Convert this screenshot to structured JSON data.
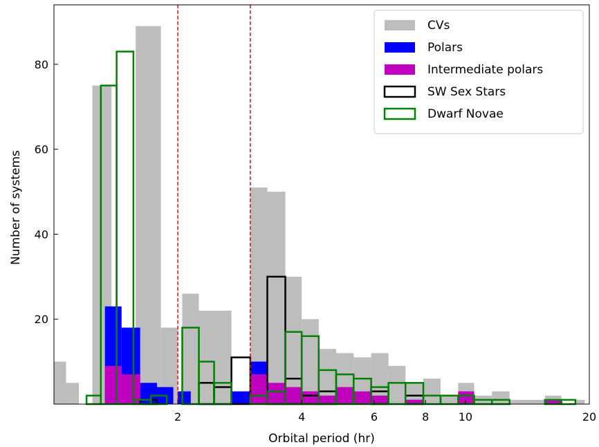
{
  "chart_data": {
    "type": "bar",
    "x_scale": "log",
    "xlim": [
      1,
      20
    ],
    "ylim": [
      0,
      94
    ],
    "xlabel": "Orbital period (hr)",
    "ylabel": "Number of systems",
    "x_ticks": [
      {
        "value": 2,
        "label": "2"
      },
      {
        "value": 4,
        "label": "4"
      },
      {
        "value": 6,
        "label": "6"
      },
      {
        "value": 8,
        "label": "8"
      },
      {
        "value": 10,
        "label": "10"
      },
      {
        "value": 20,
        "label": "20"
      }
    ],
    "y_ticks": [
      {
        "value": 20,
        "label": "20"
      },
      {
        "value": 40,
        "label": "40"
      },
      {
        "value": 60,
        "label": "60"
      },
      {
        "value": 80,
        "label": "80"
      }
    ],
    "reference_lines": [
      {
        "x": 2.0,
        "color": "#ff0000",
        "style": "dashed"
      },
      {
        "x": 3.0,
        "color": "#ff0000",
        "style": "dashed"
      }
    ],
    "legend_position": "top-right",
    "grid": false,
    "series": [
      {
        "name": "CVs",
        "style": "filled",
        "color": "#bdbdbd",
        "bins": [
          {
            "x0": 1.0,
            "x1": 1.07,
            "count": 10
          },
          {
            "x0": 1.07,
            "x1": 1.15,
            "count": 5
          },
          {
            "x0": 1.24,
            "x1": 1.38,
            "count": 75
          },
          {
            "x0": 1.58,
            "x1": 1.82,
            "count": 89
          },
          {
            "x0": 1.82,
            "x1": 2.0,
            "count": 18
          },
          {
            "x0": 2.05,
            "x1": 2.25,
            "count": 26
          },
          {
            "x0": 2.25,
            "x1": 2.45,
            "count": 22
          },
          {
            "x0": 2.45,
            "x1": 2.7,
            "count": 22
          },
          {
            "x0": 3.0,
            "x1": 3.3,
            "count": 51
          },
          {
            "x0": 3.3,
            "x1": 3.65,
            "count": 50
          },
          {
            "x0": 3.65,
            "x1": 4.0,
            "count": 30
          },
          {
            "x0": 4.0,
            "x1": 4.4,
            "count": 20
          },
          {
            "x0": 4.4,
            "x1": 4.85,
            "count": 13
          },
          {
            "x0": 4.85,
            "x1": 5.35,
            "count": 12
          },
          {
            "x0": 5.35,
            "x1": 5.9,
            "count": 11
          },
          {
            "x0": 5.9,
            "x1": 6.5,
            "count": 12
          },
          {
            "x0": 6.5,
            "x1": 7.15,
            "count": 9
          },
          {
            "x0": 7.15,
            "x1": 7.9,
            "count": 5
          },
          {
            "x0": 7.9,
            "x1": 8.7,
            "count": 6
          },
          {
            "x0": 8.7,
            "x1": 9.6,
            "count": 2
          },
          {
            "x0": 9.6,
            "x1": 10.5,
            "count": 5
          },
          {
            "x0": 10.5,
            "x1": 11.6,
            "count": 2
          },
          {
            "x0": 11.6,
            "x1": 12.8,
            "count": 3
          },
          {
            "x0": 12.8,
            "x1": 14.1,
            "count": 1
          },
          {
            "x0": 14.1,
            "x1": 15.6,
            "count": 1
          },
          {
            "x0": 15.6,
            "x1": 17.1,
            "count": 2
          },
          {
            "x0": 18.5,
            "x1": 19.5,
            "count": 1
          }
        ]
      },
      {
        "name": "Polars",
        "style": "filled",
        "color": "#0000ff",
        "bins": [
          {
            "x0": 1.33,
            "x1": 1.46,
            "count": 23
          },
          {
            "x0": 1.46,
            "x1": 1.62,
            "count": 18
          },
          {
            "x0": 1.62,
            "x1": 1.78,
            "count": 5
          },
          {
            "x0": 1.78,
            "x1": 1.95,
            "count": 4
          },
          {
            "x0": 2.0,
            "x1": 2.15,
            "count": 3
          },
          {
            "x0": 2.7,
            "x1": 3.0,
            "count": 3
          },
          {
            "x0": 3.0,
            "x1": 3.3,
            "count": 10
          },
          {
            "x0": 3.3,
            "x1": 3.65,
            "count": 4
          },
          {
            "x0": 3.65,
            "x1": 4.0,
            "count": 3
          },
          {
            "x0": 4.0,
            "x1": 4.4,
            "count": 2
          },
          {
            "x0": 7.15,
            "x1": 7.9,
            "count": 1
          }
        ]
      },
      {
        "name": "Intermediate polars",
        "style": "filled",
        "color": "#bf00bf",
        "bins": [
          {
            "x0": 1.33,
            "x1": 1.46,
            "count": 9
          },
          {
            "x0": 1.46,
            "x1": 1.62,
            "count": 7
          },
          {
            "x0": 3.0,
            "x1": 3.3,
            "count": 7
          },
          {
            "x0": 3.3,
            "x1": 3.65,
            "count": 5
          },
          {
            "x0": 3.65,
            "x1": 4.0,
            "count": 4
          },
          {
            "x0": 4.0,
            "x1": 4.4,
            "count": 3
          },
          {
            "x0": 4.4,
            "x1": 4.85,
            "count": 2
          },
          {
            "x0": 4.85,
            "x1": 5.35,
            "count": 4
          },
          {
            "x0": 5.35,
            "x1": 5.9,
            "count": 3
          },
          {
            "x0": 5.9,
            "x1": 6.5,
            "count": 2
          },
          {
            "x0": 7.15,
            "x1": 7.9,
            "count": 1
          },
          {
            "x0": 9.6,
            "x1": 10.5,
            "count": 3
          },
          {
            "x0": 15.6,
            "x1": 17.1,
            "count": 1
          }
        ]
      },
      {
        "name": "SW Sex Stars",
        "style": "outline",
        "color": "#000000",
        "bins": [
          {
            "x0": 1.62,
            "x1": 1.78,
            "count": 1
          },
          {
            "x0": 2.25,
            "x1": 2.45,
            "count": 5
          },
          {
            "x0": 2.45,
            "x1": 2.7,
            "count": 4
          },
          {
            "x0": 2.7,
            "x1": 3.0,
            "count": 11
          },
          {
            "x0": 3.3,
            "x1": 3.65,
            "count": 30
          },
          {
            "x0": 3.65,
            "x1": 4.0,
            "count": 6
          },
          {
            "x0": 4.0,
            "x1": 4.4,
            "count": 2
          },
          {
            "x0": 4.4,
            "x1": 4.85,
            "count": 3
          },
          {
            "x0": 5.9,
            "x1": 6.5,
            "count": 3
          },
          {
            "x0": 7.15,
            "x1": 7.9,
            "count": 2
          }
        ]
      },
      {
        "name": "Dwarf Novae",
        "style": "outline",
        "color": "#008000",
        "bins": [
          {
            "x0": 1.2,
            "x1": 1.3,
            "count": 2
          },
          {
            "x0": 1.3,
            "x1": 1.42,
            "count": 75
          },
          {
            "x0": 1.42,
            "x1": 1.56,
            "count": 83
          },
          {
            "x0": 1.56,
            "x1": 1.72,
            "count": 1
          },
          {
            "x0": 1.72,
            "x1": 1.88,
            "count": 2
          },
          {
            "x0": 2.05,
            "x1": 2.25,
            "count": 18
          },
          {
            "x0": 2.25,
            "x1": 2.45,
            "count": 10
          },
          {
            "x0": 2.45,
            "x1": 2.7,
            "count": 5
          },
          {
            "x0": 3.0,
            "x1": 3.3,
            "count": 2
          },
          {
            "x0": 3.3,
            "x1": 3.65,
            "count": 3
          },
          {
            "x0": 3.65,
            "x1": 4.0,
            "count": 17
          },
          {
            "x0": 4.0,
            "x1": 4.4,
            "count": 16
          },
          {
            "x0": 4.4,
            "x1": 4.85,
            "count": 8
          },
          {
            "x0": 4.85,
            "x1": 5.35,
            "count": 7
          },
          {
            "x0": 5.35,
            "x1": 5.9,
            "count": 6
          },
          {
            "x0": 5.9,
            "x1": 6.5,
            "count": 4
          },
          {
            "x0": 6.5,
            "x1": 7.15,
            "count": 5
          },
          {
            "x0": 7.15,
            "x1": 7.9,
            "count": 5
          },
          {
            "x0": 7.9,
            "x1": 8.7,
            "count": 2
          },
          {
            "x0": 8.7,
            "x1": 9.6,
            "count": 2
          },
          {
            "x0": 9.6,
            "x1": 10.5,
            "count": 2
          },
          {
            "x0": 10.5,
            "x1": 11.6,
            "count": 1
          },
          {
            "x0": 11.6,
            "x1": 12.8,
            "count": 1
          },
          {
            "x0": 15.6,
            "x1": 17.1,
            "count": 1
          },
          {
            "x0": 17.1,
            "x1": 18.5,
            "count": 1
          }
        ]
      }
    ]
  }
}
